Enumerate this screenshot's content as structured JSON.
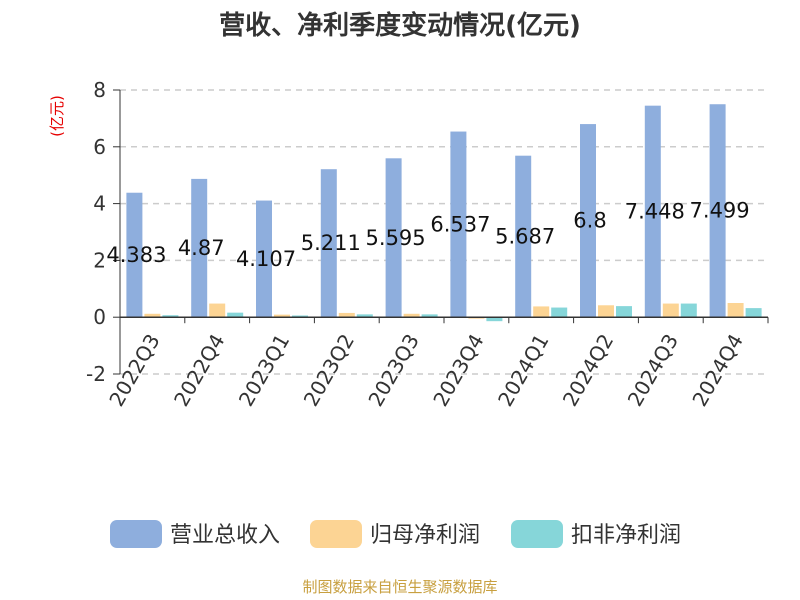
{
  "source_text": "制图数据来自恒生聚源数据库",
  "colors": {
    "revenue": "#8eaedd",
    "net_profit": "#fcd494",
    "deducted_net_profit": "#86d6d9",
    "grid": "#cccccc",
    "axis": "#333333",
    "unit": "#e60000",
    "source": "#c8a040"
  },
  "chart_data": {
    "type": "bar",
    "title": "营收、净利季度变动情况(亿元)",
    "ylabel": "(亿元)",
    "ylim": [
      -2,
      8
    ],
    "yticks": [
      -2,
      0,
      2,
      4,
      6,
      8
    ],
    "grid": true,
    "legend_position": "bottom",
    "categories": [
      "2022Q3",
      "2022Q4",
      "2023Q1",
      "2023Q2",
      "2023Q3",
      "2023Q4",
      "2024Q1",
      "2024Q2",
      "2024Q3",
      "2024Q4"
    ],
    "series": [
      {
        "name": "营业总收入",
        "values": [
          4.383,
          4.87,
          4.107,
          5.211,
          5.595,
          6.537,
          5.687,
          6.8,
          7.448,
          7.499
        ],
        "labels": [
          "4.383",
          "4.87",
          "4.107",
          "5.211",
          "5.595",
          "6.537",
          "5.687",
          "6.8",
          "7.448",
          "7.499"
        ]
      },
      {
        "name": "归母净利润",
        "values": [
          0.12,
          0.48,
          0.09,
          0.15,
          0.12,
          -0.05,
          0.38,
          0.42,
          0.48,
          0.5
        ]
      },
      {
        "name": "扣非净利润",
        "values": [
          0.07,
          0.16,
          0.06,
          0.1,
          0.1,
          -0.14,
          0.34,
          0.39,
          0.48,
          0.32
        ]
      }
    ]
  }
}
